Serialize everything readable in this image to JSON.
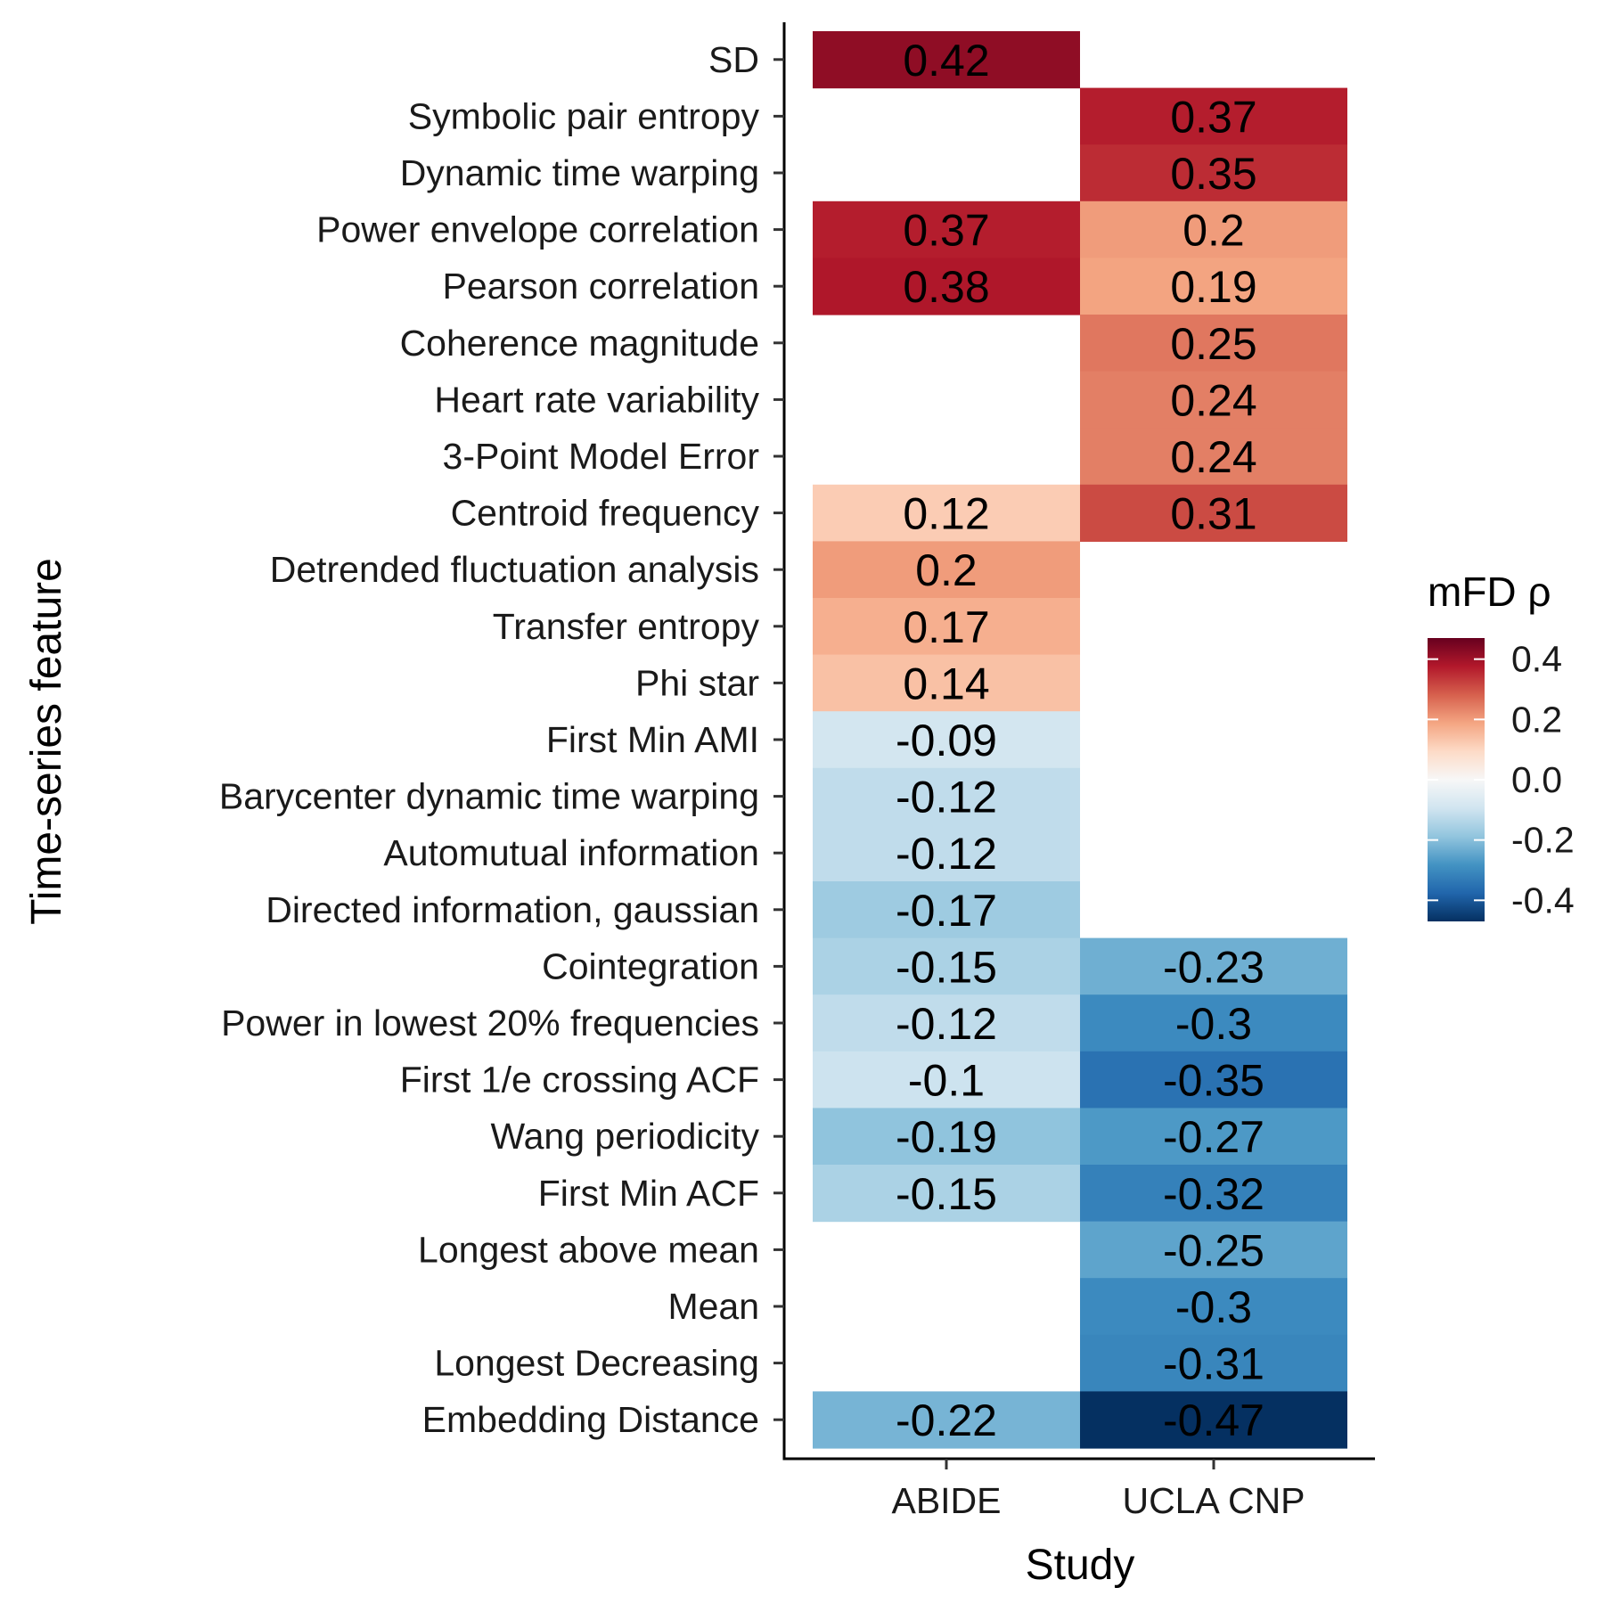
{
  "chart_data": {
    "type": "heatmap",
    "xlabel": "Study",
    "ylabel": "Time-series feature",
    "x": [
      "ABIDE",
      "UCLA CNP"
    ],
    "y": [
      "SD",
      "Symbolic pair entropy",
      "Dynamic time warping",
      "Power envelope correlation",
      "Pearson correlation",
      "Coherence magnitude",
      "Heart rate variability",
      "3-Point Model Error",
      "Centroid frequency",
      "Detrended fluctuation analysis",
      "Transfer entropy",
      "Phi star",
      "First Min AMI",
      "Barycenter dynamic time warping",
      "Automutual information",
      "Directed information, gaussian",
      "Cointegration",
      "Power in lowest 20% frequencies ",
      "First 1/e crossing ACF",
      "Wang periodicity",
      "First Min ACF",
      "Longest above mean",
      "Mean",
      "Longest Decreasing",
      "Embedding Distance"
    ],
    "values": [
      [
        0.42,
        null
      ],
      [
        null,
        0.37
      ],
      [
        null,
        0.35
      ],
      [
        0.37,
        0.2
      ],
      [
        0.38,
        0.19
      ],
      [
        null,
        0.25
      ],
      [
        null,
        0.24
      ],
      [
        null,
        0.24
      ],
      [
        0.12,
        0.31
      ],
      [
        0.2,
        null
      ],
      [
        0.17,
        null
      ],
      [
        0.14,
        null
      ],
      [
        -0.09,
        null
      ],
      [
        -0.12,
        null
      ],
      [
        -0.12,
        null
      ],
      [
        -0.17,
        null
      ],
      [
        -0.15,
        -0.23
      ],
      [
        -0.12,
        -0.3
      ],
      [
        -0.1,
        -0.35
      ],
      [
        -0.19,
        -0.27
      ],
      [
        -0.15,
        -0.32
      ],
      [
        null,
        -0.25
      ],
      [
        null,
        -0.3
      ],
      [
        null,
        -0.31
      ],
      [
        -0.22,
        -0.47
      ]
    ],
    "cell_labels": [
      [
        "0.42",
        ""
      ],
      [
        "",
        "0.37"
      ],
      [
        "",
        "0.35"
      ],
      [
        "0.37",
        "0.2"
      ],
      [
        "0.38",
        "0.19"
      ],
      [
        "",
        "0.25"
      ],
      [
        "",
        "0.24"
      ],
      [
        "",
        "0.24"
      ],
      [
        "0.12",
        "0.31"
      ],
      [
        "0.2",
        ""
      ],
      [
        "0.17",
        ""
      ],
      [
        "0.14",
        ""
      ],
      [
        "-0.09",
        ""
      ],
      [
        "-0.12",
        ""
      ],
      [
        "-0.12",
        ""
      ],
      [
        "-0.17",
        ""
      ],
      [
        "-0.15",
        "-0.23"
      ],
      [
        "-0.12",
        "-0.3"
      ],
      [
        "-0.1",
        "-0.35"
      ],
      [
        "-0.19",
        "-0.27"
      ],
      [
        "-0.15",
        "-0.32"
      ],
      [
        "",
        "-0.25"
      ],
      [
        "",
        "-0.3"
      ],
      [
        "",
        "-0.31"
      ],
      [
        "-0.22",
        "-0.47"
      ]
    ],
    "legend": {
      "title": "mFD ρ",
      "ticks": [
        0.4,
        0.2,
        0.0,
        -0.2,
        -0.4
      ],
      "tick_labels": [
        "0.4",
        "0.2",
        "0.0",
        "-0.2",
        "-0.4"
      ],
      "range": [
        -0.47,
        0.47
      ],
      "placement": "right"
    },
    "colorscale": [
      "#053061",
      "#2166ac",
      "#4393c3",
      "#92c5de",
      "#d1e5f0",
      "#f7f7f7",
      "#fddbc7",
      "#f4a582",
      "#d6604d",
      "#b2182b",
      "#67001f"
    ],
    "grid": false
  }
}
